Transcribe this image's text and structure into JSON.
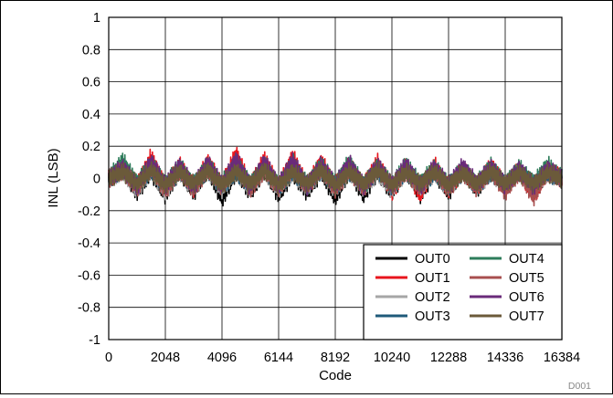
{
  "chart_data": {
    "type": "line",
    "xlabel": "Code",
    "ylabel": "INL (LSB)",
    "xlim": [
      0,
      16384
    ],
    "ylim": [
      -1,
      1
    ],
    "x_ticks": [
      0,
      2048,
      4096,
      6144,
      8192,
      10240,
      12288,
      14336,
      16384
    ],
    "y_ticks": [
      1,
      0.8,
      0.6,
      0.4,
      0.2,
      0,
      -0.2,
      -0.4,
      -0.6,
      -0.8,
      -1
    ],
    "grid": true,
    "legend_position": "bottom-right",
    "figure_id": "D001",
    "series": [
      {
        "name": "OUT0",
        "color": "#000000",
        "values": [
          0,
          0.06,
          -0.1,
          0.05,
          -0.12,
          0.06,
          -0.1,
          0.07,
          -0.15,
          0.05,
          -0.1,
          0.06,
          -0.12,
          0.04,
          -0.1,
          0.05,
          -0.14,
          0.06,
          -0.12,
          0.05,
          -0.1,
          0.07,
          -0.12,
          0.05,
          -0.1,
          0.06,
          -0.08,
          0.07,
          -0.06,
          0.05,
          -0.07,
          0.04,
          0
        ]
      },
      {
        "name": "OUT1",
        "color": "#e8141c",
        "values": [
          0,
          0.08,
          -0.06,
          0.16,
          -0.08,
          0.1,
          -0.07,
          0.12,
          -0.05,
          0.18,
          -0.06,
          0.14,
          -0.07,
          0.16,
          -0.06,
          0.12,
          -0.05,
          0.1,
          -0.06,
          0.12,
          -0.1,
          0.08,
          -0.12,
          0.1,
          -0.08,
          0.07,
          -0.06,
          0.09,
          -0.05,
          0.06,
          -0.12,
          0.05,
          0
        ]
      },
      {
        "name": "OUT2",
        "color": "#a6a6a6",
        "values": [
          0,
          0.05,
          -0.08,
          0.06,
          -0.1,
          0.05,
          -0.07,
          0.06,
          -0.08,
          0.05,
          -0.07,
          0.06,
          -0.08,
          0.05,
          -0.07,
          0.06,
          -0.08,
          0.05,
          -0.07,
          0.04,
          -0.08,
          0.05,
          -0.06,
          0.04,
          -0.07,
          0.05,
          -0.06,
          0.04,
          -0.05,
          0.05,
          -0.06,
          0.04,
          0
        ]
      },
      {
        "name": "OUT3",
        "color": "#1f5a7a",
        "values": [
          0,
          0.07,
          -0.05,
          0.06,
          -0.06,
          0.05,
          -0.05,
          0.06,
          -0.06,
          0.05,
          -0.05,
          0.07,
          -0.06,
          0.05,
          -0.05,
          0.06,
          -0.06,
          0.05,
          -0.05,
          0.06,
          -0.06,
          0.05,
          -0.05,
          0.04,
          -0.06,
          0.05,
          -0.05,
          0.04,
          -0.05,
          0.05,
          -0.04,
          0.04,
          0
        ]
      },
      {
        "name": "OUT4",
        "color": "#2e7d5b",
        "values": [
          0,
          0.13,
          -0.04,
          0.11,
          -0.05,
          0.09,
          -0.05,
          0.1,
          -0.04,
          0.12,
          -0.05,
          0.1,
          -0.06,
          0.12,
          -0.05,
          0.1,
          -0.04,
          0.12,
          -0.06,
          0.09,
          -0.05,
          0.1,
          -0.04,
          0.08,
          -0.05,
          0.07,
          -0.04,
          0.09,
          -0.05,
          0.08,
          -0.04,
          0.1,
          0
        ]
      },
      {
        "name": "OUT5",
        "color": "#a84f4f",
        "values": [
          0,
          0.06,
          -0.07,
          0.08,
          -0.09,
          0.06,
          -0.08,
          0.07,
          -0.06,
          0.1,
          -0.08,
          0.06,
          -0.07,
          0.08,
          -0.06,
          0.07,
          -0.08,
          0.06,
          -0.07,
          0.08,
          -0.06,
          0.05,
          -0.07,
          0.06,
          -0.08,
          0.05,
          -0.07,
          0.06,
          -0.1,
          0.05,
          -0.14,
          0.06,
          0
        ]
      },
      {
        "name": "OUT6",
        "color": "#6a2b7a",
        "values": [
          0,
          0.08,
          -0.06,
          0.12,
          -0.05,
          0.09,
          -0.06,
          0.11,
          -0.05,
          0.14,
          -0.06,
          0.12,
          -0.05,
          0.13,
          -0.06,
          0.1,
          -0.05,
          0.11,
          -0.06,
          0.09,
          -0.05,
          0.1,
          -0.06,
          0.08,
          -0.05,
          0.09,
          -0.04,
          0.08,
          -0.05,
          0.07,
          -0.06,
          0.07,
          0
        ]
      },
      {
        "name": "OUT7",
        "color": "#6b5a3a",
        "values": [
          0,
          0.05,
          -0.04,
          0.06,
          -0.05,
          0.05,
          -0.04,
          0.06,
          -0.05,
          0.05,
          -0.04,
          0.06,
          -0.05,
          0.05,
          -0.04,
          0.06,
          -0.05,
          0.05,
          -0.04,
          0.06,
          -0.05,
          0.05,
          -0.04,
          0.05,
          -0.05,
          0.04,
          -0.04,
          0.05,
          -0.04,
          0.04,
          -0.04,
          0.04,
          0
        ]
      }
    ]
  }
}
